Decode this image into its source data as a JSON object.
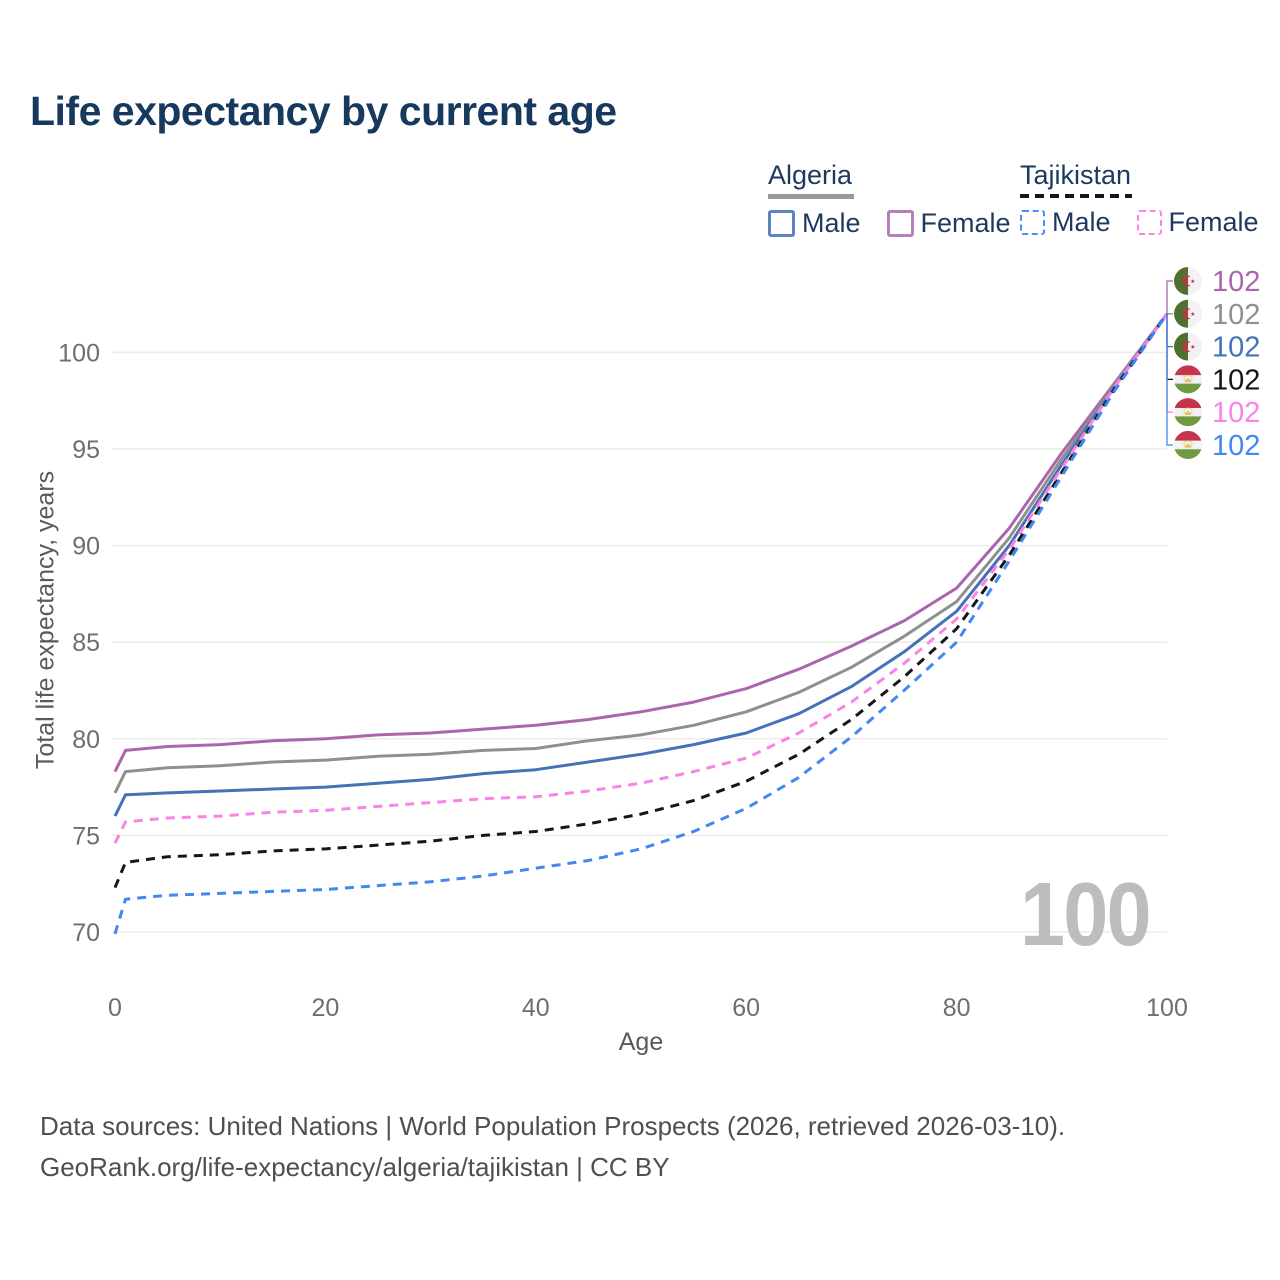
{
  "title": "Life expectancy by current age",
  "legend": {
    "groups": [
      {
        "label": "Algeria",
        "line_style": "solid",
        "underline_color": "#9a9a9a",
        "items": [
          {
            "label": "Male",
            "color": "#5b83c2"
          },
          {
            "label": "Female",
            "color": "#b77fb8"
          }
        ]
      },
      {
        "label": "Tajikistan",
        "line_style": "dashed",
        "underline_color": "#161616",
        "items": [
          {
            "label": "Male",
            "color": "#4d8df5"
          },
          {
            "label": "Female",
            "color": "#fb82e6"
          }
        ]
      }
    ]
  },
  "chart_data": {
    "type": "line",
    "title": "Life expectancy by current age",
    "xlabel": "Age",
    "ylabel": "Total life expectancy, years",
    "x_ticks": [
      0,
      20,
      40,
      60,
      80,
      100
    ],
    "y_ticks": [
      70,
      75,
      80,
      85,
      90,
      95,
      100
    ],
    "xlim": [
      0,
      100
    ],
    "ylim": [
      68,
      103
    ],
    "grid": "horizontal",
    "legend_position": "top-right",
    "x": [
      0,
      1,
      5,
      10,
      15,
      20,
      25,
      30,
      35,
      40,
      45,
      50,
      55,
      60,
      65,
      70,
      75,
      80,
      85,
      90,
      95,
      100
    ],
    "series": [
      {
        "name": "Algeria Female",
        "id": "algeria-female",
        "country": "Algeria",
        "sex": "Female",
        "color": "#ab65af",
        "dash": "solid",
        "end_label": "102",
        "icon": "algeria-flag-icon",
        "flag": "algeria",
        "values": [
          78.3,
          79.4,
          79.6,
          79.7,
          79.9,
          80.0,
          80.2,
          80.3,
          80.5,
          80.7,
          81.0,
          81.4,
          81.9,
          82.6,
          83.6,
          84.8,
          86.1,
          87.8,
          90.9,
          94.8,
          98.4,
          102
        ]
      },
      {
        "name": "Algeria (both sexes)",
        "id": "algeria-all",
        "country": "Algeria",
        "sex": "All",
        "color": "#8f8f8f",
        "dash": "solid",
        "end_label": "102",
        "icon": "algeria-flag-icon",
        "flag": "algeria",
        "values": [
          77.2,
          78.3,
          78.5,
          78.6,
          78.8,
          78.9,
          79.1,
          79.2,
          79.4,
          79.5,
          79.9,
          80.2,
          80.7,
          81.4,
          82.4,
          83.7,
          85.3,
          87.1,
          90.4,
          94.5,
          98.3,
          102
        ]
      },
      {
        "name": "Algeria Male",
        "id": "algeria-male",
        "country": "Algeria",
        "sex": "Male",
        "color": "#4472b8",
        "dash": "solid",
        "end_label": "102",
        "icon": "algeria-flag-icon",
        "flag": "algeria",
        "values": [
          76.0,
          77.1,
          77.2,
          77.3,
          77.4,
          77.5,
          77.7,
          77.9,
          78.2,
          78.4,
          78.8,
          79.2,
          79.7,
          80.3,
          81.3,
          82.7,
          84.5,
          86.6,
          90.0,
          94.2,
          98.2,
          102
        ]
      },
      {
        "name": "Tajikistan (both sexes)",
        "id": "tajikistan-all",
        "country": "Tajikistan",
        "sex": "All",
        "color": "#161616",
        "dash": "dashed",
        "end_label": "102",
        "icon": "tajikistan-flag-icon",
        "flag": "tajikistan",
        "values": [
          72.3,
          73.6,
          73.9,
          74.0,
          74.2,
          74.3,
          74.5,
          74.7,
          75.0,
          75.2,
          75.6,
          76.1,
          76.8,
          77.8,
          79.2,
          81.0,
          83.2,
          85.7,
          89.5,
          93.8,
          98.1,
          102
        ]
      },
      {
        "name": "Tajikistan Female",
        "id": "tajikistan-female",
        "country": "Tajikistan",
        "sex": "Female",
        "color": "#fb82e6",
        "dash": "dashed",
        "end_label": "102",
        "icon": "tajikistan-flag-icon",
        "flag": "tajikistan",
        "values": [
          74.6,
          75.7,
          75.9,
          76.0,
          76.2,
          76.3,
          76.5,
          76.7,
          76.9,
          77.0,
          77.3,
          77.7,
          78.3,
          79.0,
          80.3,
          81.9,
          83.9,
          86.2,
          89.8,
          94.0,
          98.2,
          102
        ]
      },
      {
        "name": "Tajikistan Male",
        "id": "tajikistan-male",
        "country": "Tajikistan",
        "sex": "Male",
        "color": "#4188f2",
        "dash": "dashed",
        "end_label": "102",
        "icon": "tajikistan-flag-icon",
        "flag": "tajikistan",
        "values": [
          69.9,
          71.7,
          71.9,
          72.0,
          72.1,
          72.2,
          72.4,
          72.6,
          72.9,
          73.3,
          73.7,
          74.3,
          75.2,
          76.4,
          78.0,
          80.1,
          82.5,
          85.0,
          89.2,
          93.6,
          98.0,
          102
        ]
      }
    ]
  },
  "watermark": "100",
  "footer": {
    "line1": "Data sources: United Nations | World Population Prospects (2026, retrieved 2026-03-10).",
    "line2": "GeoRank.org/life-expectancy/algeria/tajikistan | CC BY"
  }
}
